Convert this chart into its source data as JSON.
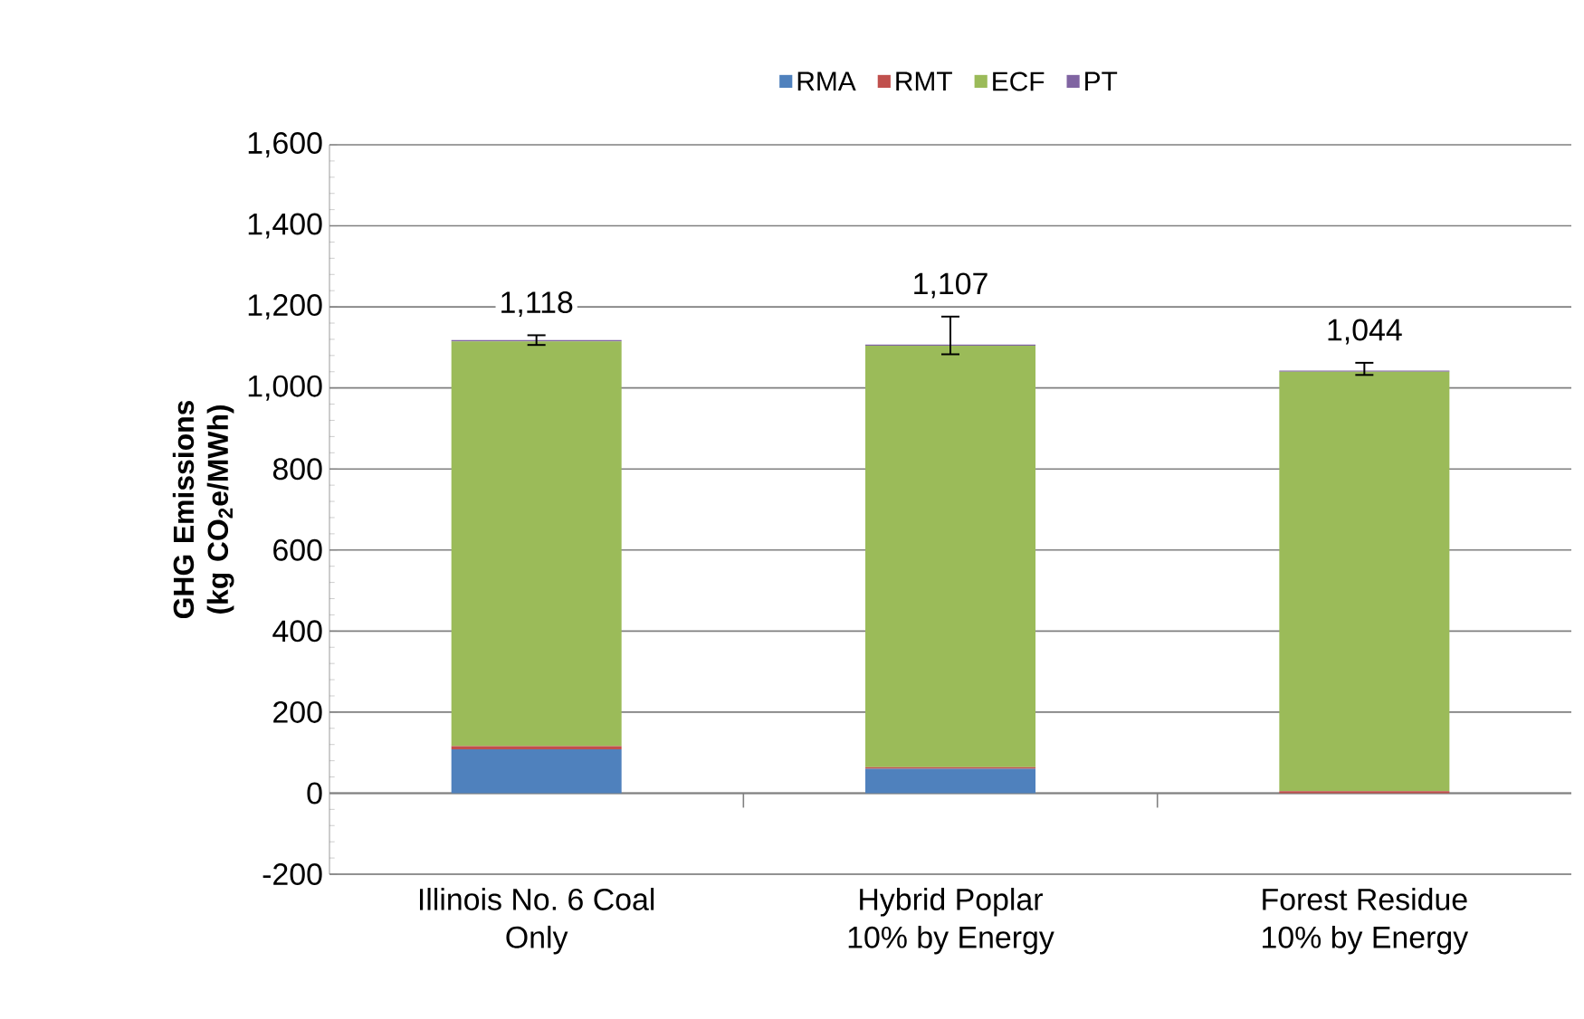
{
  "chart_data": {
    "type": "bar",
    "stacked": true,
    "ylabel": "GHG Emissions (kg CO$_{2}$e/MWh)",
    "categories": [
      "Illinois No. 6 Coal Only",
      "Hybrid Poplar 10% by Energy",
      "Forest Residue 10% by Energy"
    ],
    "series": [
      {
        "name": "RMA",
        "color": "#4f81bd",
        "values": [
          108,
          60,
          0
        ]
      },
      {
        "name": "RMT",
        "color": "#c0504d",
        "values": [
          8,
          4,
          5
        ]
      },
      {
        "name": "ECF",
        "color": "#9bbb59",
        "values": [
          999,
          1040,
          1035
        ]
      },
      {
        "name": "PT",
        "color": "#8064a2",
        "values": [
          3,
          3,
          3
        ],
        "errors": [
          [
            1106,
            1130
          ],
          [
            1083,
            1176
          ],
          [
            1032,
            1062
          ]
        ]
      }
    ],
    "totals": [
      "1,118",
      "1,107",
      "1,044"
    ],
    "ylim": [
      -200,
      1600
    ],
    "yticks": [
      {
        "value": -200,
        "label": "-200"
      },
      0,
      200,
      400,
      600,
      800,
      {
        "value": 1000,
        "label": "1,000"
      },
      {
        "value": 1200,
        "label": "1,200"
      },
      {
        "value": 1400,
        "label": "1,400"
      },
      {
        "value": 1600,
        "label": "1,600"
      }
    ],
    "grid": "y",
    "legend": "top"
  }
}
